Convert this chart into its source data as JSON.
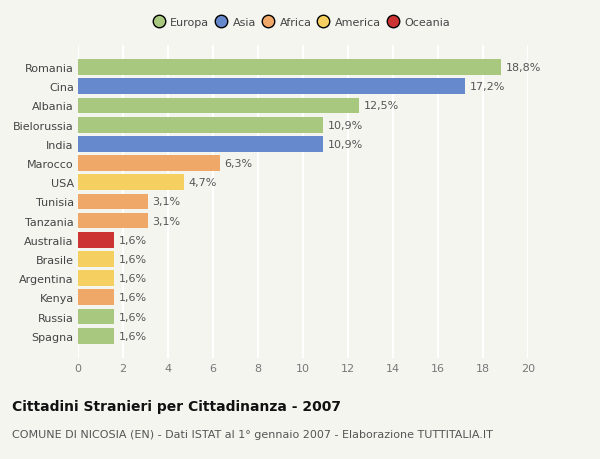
{
  "categories": [
    "Spagna",
    "Russia",
    "Kenya",
    "Argentina",
    "Brasile",
    "Australia",
    "Tanzania",
    "Tunisia",
    "USA",
    "Marocco",
    "India",
    "Bielorussia",
    "Albania",
    "Cina",
    "Romania"
  ],
  "values": [
    1.6,
    1.6,
    1.6,
    1.6,
    1.6,
    1.6,
    3.1,
    3.1,
    4.7,
    6.3,
    10.9,
    10.9,
    12.5,
    17.2,
    18.8
  ],
  "colors": [
    "#a8c880",
    "#a8c880",
    "#f0a868",
    "#f5d060",
    "#f5d060",
    "#cc3333",
    "#f0a868",
    "#f0a868",
    "#f5d060",
    "#f0a868",
    "#6688cc",
    "#a8c880",
    "#a8c880",
    "#6688cc",
    "#a8c880"
  ],
  "labels": [
    "1,6%",
    "1,6%",
    "1,6%",
    "1,6%",
    "1,6%",
    "1,6%",
    "3,1%",
    "3,1%",
    "4,7%",
    "6,3%",
    "10,9%",
    "10,9%",
    "12,5%",
    "17,2%",
    "18,8%"
  ],
  "xlim": [
    0,
    20
  ],
  "xticks": [
    0,
    2,
    4,
    6,
    8,
    10,
    12,
    14,
    16,
    18,
    20
  ],
  "legend_entries": [
    {
      "label": "Europa",
      "color": "#a8c880"
    },
    {
      "label": "Asia",
      "color": "#6688cc"
    },
    {
      "label": "Africa",
      "color": "#f0a868"
    },
    {
      "label": "America",
      "color": "#f5d060"
    },
    {
      "label": "Oceania",
      "color": "#cc3333"
    }
  ],
  "title": "Cittadini Stranieri per Cittadinanza - 2007",
  "subtitle": "COMUNE DI NICOSIA (EN) - Dati ISTAT al 1° gennaio 2007 - Elaborazione TUTTITALIA.IT",
  "background_color": "#f5f5f0",
  "bar_height": 0.82,
  "label_fontsize": 8,
  "tick_fontsize": 8,
  "title_fontsize": 10,
  "subtitle_fontsize": 8
}
